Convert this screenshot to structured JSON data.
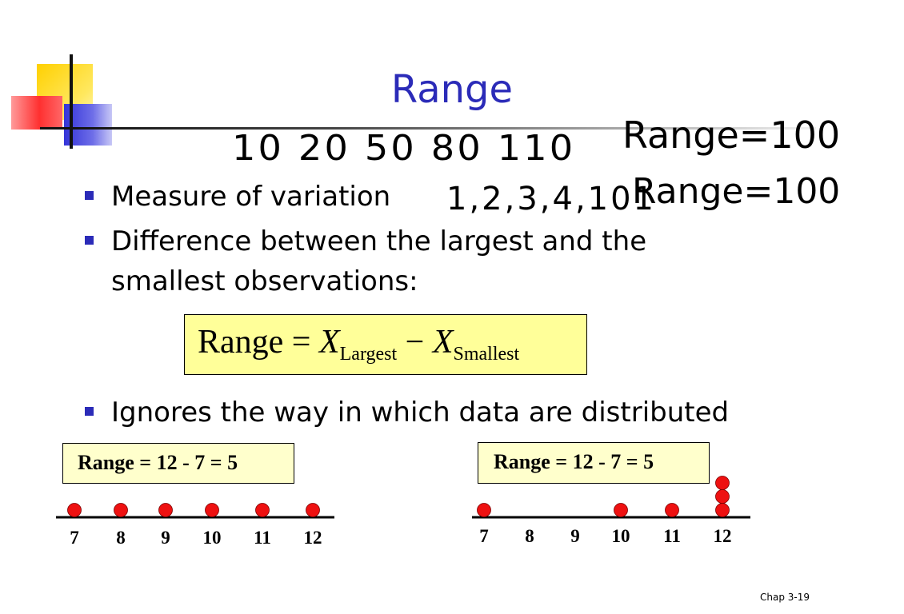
{
  "slide": {
    "title": "Range",
    "handwritten": {
      "seq1": "10 20 50 80 110",
      "range1": "Range=100",
      "seq2": "1,2,3,4,101",
      "range2": "Range=100"
    },
    "bullets": [
      "Measure of variation",
      "Difference between the largest and the",
      "smallest observations:",
      "Ignores the way in which data are distributed"
    ],
    "formula": {
      "lhs": "Range",
      "eq": "=",
      "x": "X",
      "sub1": "Largest",
      "minus": "−",
      "sub2": "Smallest"
    },
    "examples": [
      {
        "label": "Range = 12 - 7 = 5",
        "ticks": [
          "7",
          "8",
          "9",
          "10",
          "11",
          "12"
        ],
        "dots": [
          7,
          8,
          9,
          10,
          11,
          12
        ]
      },
      {
        "label": "Range = 12 - 7 = 5",
        "ticks": [
          "7",
          "8",
          "9",
          "10",
          "11",
          "12"
        ],
        "dots": [
          7,
          10,
          11,
          12,
          12,
          12
        ]
      }
    ],
    "footer": "Chap 3-19",
    "colors": {
      "title": "#2b2bb8",
      "bullet": "#2b2bb8",
      "dot": "#ee1111",
      "formula_bg": "#ffff99",
      "example_bg": "#ffffcc"
    }
  }
}
